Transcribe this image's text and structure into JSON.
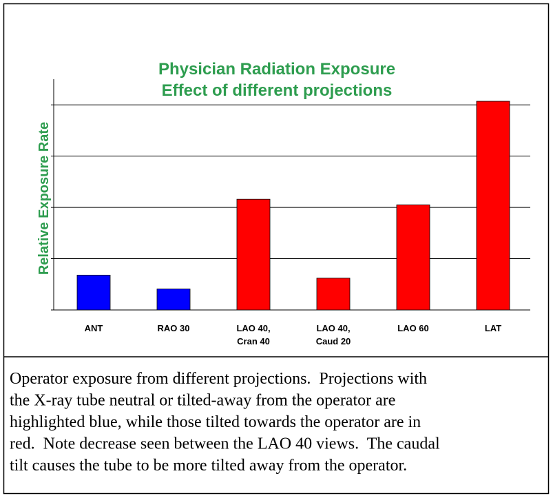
{
  "chart_data": {
    "type": "bar",
    "title": "Physician Radiation Exposure",
    "subtitle": "Effect of different projections",
    "y_label": "Relative Exposure Rate",
    "categories": [
      "ANT",
      "RAO 30",
      "LAO 40,\nCran 40",
      "LAO 40,\nCaud 20",
      "LAO 60",
      "LAT"
    ],
    "values": [
      0.68,
      0.41,
      2.16,
      0.62,
      2.05,
      4.07
    ],
    "colors": [
      "#0000ff",
      "#0000ff",
      "#ff0000",
      "#ff0000",
      "#ff0000",
      "#ff0000"
    ],
    "ylim": [
      0,
      4.5
    ],
    "yticks": [
      0,
      1,
      2,
      3,
      4
    ],
    "grid": true
  },
  "caption": [
    "Operator exposure from different projections.  Projections with",
    "the X-ray tube neutral or tilted-away from the operator are",
    "highlighted blue, while those tilted towards the operator are in",
    "red.  Note decrease seen between the LAO 40 views.  The caudal",
    "tilt causes the tube to be more tilted away from the operator."
  ]
}
